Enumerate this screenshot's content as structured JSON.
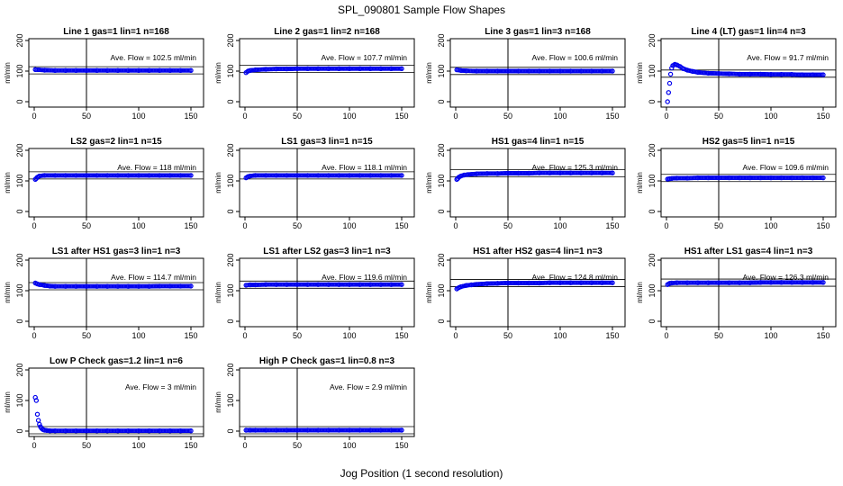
{
  "figure": {
    "title": "SPL_090801  Sample Flow Shapes",
    "xlabel": "Jog Position (1 second resolution)"
  },
  "colors": {
    "points": "#0000ee",
    "axes": "#000000"
  },
  "chart_data": [
    {
      "type": "scatter",
      "title": "Line 1 gas=1 lin=1 n=168",
      "ylabel": "ml/min",
      "annotation": "Ave. Flow =  102.5  ml/min",
      "mean": 102.5,
      "xlim": [
        0,
        150
      ],
      "ylim": [
        0,
        200
      ],
      "xticks": [
        0,
        50,
        100,
        150
      ],
      "yticks": [
        0,
        100,
        200
      ],
      "vline": 50,
      "x": [
        1,
        10,
        20,
        30,
        40,
        50,
        60,
        70,
        80,
        90,
        100,
        110,
        120,
        130,
        140,
        150
      ],
      "y": [
        105,
        103,
        102,
        102,
        102,
        102,
        102,
        102,
        102,
        102,
        102,
        102,
        102,
        102,
        102,
        102
      ]
    },
    {
      "type": "scatter",
      "title": "Line 2 gas=1 lin=2 n=168",
      "ylabel": "ml/min",
      "annotation": "Ave. Flow =  107.7  ml/min",
      "mean": 107.7,
      "xlim": [
        0,
        150
      ],
      "ylim": [
        0,
        200
      ],
      "xticks": [
        0,
        50,
        100,
        150
      ],
      "yticks": [
        0,
        100,
        200
      ],
      "vline": 50,
      "x": [
        1,
        3,
        5,
        10,
        20,
        30,
        40,
        50,
        60,
        70,
        80,
        90,
        100,
        110,
        120,
        130,
        140,
        150
      ],
      "y": [
        95,
        100,
        102,
        104,
        106,
        107,
        107,
        108,
        108,
        108,
        108,
        108,
        108,
        108,
        108,
        108,
        108,
        108
      ]
    },
    {
      "type": "scatter",
      "title": "Line 3 gas=1 lin=3 n=168",
      "ylabel": "ml/min",
      "annotation": "Ave. Flow =  100.6  ml/min",
      "mean": 100.6,
      "xlim": [
        0,
        150
      ],
      "ylim": [
        0,
        200
      ],
      "xticks": [
        0,
        50,
        100,
        150
      ],
      "yticks": [
        0,
        100,
        200
      ],
      "vline": 50,
      "x": [
        1,
        5,
        10,
        20,
        30,
        40,
        50,
        60,
        70,
        80,
        90,
        100,
        110,
        120,
        130,
        140,
        150
      ],
      "y": [
        104,
        102,
        101,
        100,
        100,
        100,
        100,
        100,
        100,
        100,
        100,
        100,
        100,
        100,
        100,
        100,
        100
      ]
    },
    {
      "type": "scatter",
      "title": "Line 4 (LT) gas=1 lin=4 n=3",
      "ylabel": "ml/min",
      "annotation": "Ave. Flow =  91.7  ml/min",
      "mean": 91.7,
      "xlim": [
        0,
        150
      ],
      "ylim": [
        0,
        200
      ],
      "xticks": [
        0,
        50,
        100,
        150
      ],
      "yticks": [
        0,
        100,
        200
      ],
      "vline": 50,
      "x": [
        1,
        2,
        3,
        4,
        5,
        6,
        8,
        10,
        13,
        16,
        20,
        25,
        30,
        40,
        50,
        60,
        70,
        80,
        90,
        100,
        110,
        120,
        130,
        140,
        150
      ],
      "y": [
        0,
        30,
        60,
        90,
        110,
        118,
        122,
        120,
        115,
        108,
        103,
        99,
        96,
        93,
        92,
        91,
        90,
        90,
        90,
        89,
        89,
        89,
        88,
        88,
        88
      ]
    },
    {
      "type": "scatter",
      "title": "LS2 gas=2 lin=1 n=15",
      "ylabel": "ml/min",
      "annotation": "Ave. Flow =  118  ml/min",
      "mean": 118,
      "xlim": [
        0,
        150
      ],
      "ylim": [
        0,
        200
      ],
      "xticks": [
        0,
        50,
        100,
        150
      ],
      "yticks": [
        0,
        100,
        200
      ],
      "vline": 50,
      "x": [
        1,
        2,
        3,
        5,
        10,
        20,
        30,
        40,
        50,
        60,
        70,
        80,
        90,
        100,
        110,
        120,
        130,
        140,
        150
      ],
      "y": [
        105,
        108,
        112,
        116,
        118,
        118,
        118,
        118,
        118,
        118,
        118,
        118,
        118,
        118,
        118,
        118,
        118,
        118,
        118
      ]
    },
    {
      "type": "scatter",
      "title": "LS1 gas=3 lin=1 n=15",
      "ylabel": "ml/min",
      "annotation": "Ave. Flow =  118.1  ml/min",
      "mean": 118.1,
      "xlim": [
        0,
        150
      ],
      "ylim": [
        0,
        200
      ],
      "xticks": [
        0,
        50,
        100,
        150
      ],
      "yticks": [
        0,
        100,
        200
      ],
      "vline": 50,
      "x": [
        1,
        3,
        5,
        10,
        20,
        30,
        40,
        50,
        60,
        70,
        80,
        90,
        100,
        110,
        120,
        130,
        140,
        150
      ],
      "y": [
        110,
        114,
        116,
        118,
        118,
        118,
        118,
        118,
        118,
        118,
        118,
        118,
        118,
        118,
        118,
        118,
        118,
        118
      ]
    },
    {
      "type": "scatter",
      "title": "HS1 gas=4 lin=1 n=15",
      "ylabel": "ml/min",
      "annotation": "Ave. Flow =  125.3  ml/min",
      "mean": 125.3,
      "xlim": [
        0,
        150
      ],
      "ylim": [
        0,
        200
      ],
      "xticks": [
        0,
        50,
        100,
        150
      ],
      "yticks": [
        0,
        100,
        200
      ],
      "vline": 50,
      "x": [
        1,
        2,
        3,
        5,
        8,
        12,
        20,
        30,
        40,
        50,
        60,
        70,
        80,
        90,
        100,
        110,
        120,
        130,
        140,
        150
      ],
      "y": [
        105,
        108,
        112,
        116,
        119,
        121,
        123,
        124,
        124,
        125,
        125,
        125,
        126,
        126,
        126,
        126,
        126,
        126,
        126,
        126
      ]
    },
    {
      "type": "scatter",
      "title": "HS2 gas=5 lin=1 n=15",
      "ylabel": "ml/min",
      "annotation": "Ave. Flow =  109.6  ml/min",
      "mean": 109.6,
      "xlim": [
        0,
        150
      ],
      "ylim": [
        0,
        200
      ],
      "xticks": [
        0,
        50,
        100,
        150
      ],
      "yticks": [
        0,
        100,
        200
      ],
      "vline": 50,
      "x": [
        1,
        3,
        5,
        10,
        20,
        30,
        40,
        50,
        60,
        70,
        80,
        90,
        100,
        110,
        120,
        130,
        140,
        150
      ],
      "y": [
        106,
        107,
        108,
        109,
        109,
        110,
        110,
        110,
        110,
        110,
        110,
        110,
        110,
        110,
        110,
        110,
        110,
        110
      ]
    },
    {
      "type": "scatter",
      "title": "LS1 after HS1 gas=3 lin=1 n=3",
      "ylabel": "ml/min",
      "annotation": "Ave. Flow =  114.7  ml/min",
      "mean": 114.7,
      "xlim": [
        0,
        150
      ],
      "ylim": [
        0,
        200
      ],
      "xticks": [
        0,
        50,
        100,
        150
      ],
      "yticks": [
        0,
        100,
        200
      ],
      "vline": 50,
      "x": [
        1,
        3,
        5,
        10,
        15,
        20,
        30,
        40,
        50,
        60,
        70,
        80,
        90,
        100,
        110,
        120,
        130,
        140,
        150
      ],
      "y": [
        125,
        122,
        120,
        117,
        115,
        114,
        114,
        114,
        114,
        114,
        114,
        114,
        114,
        114,
        114,
        115,
        115,
        115,
        115
      ]
    },
    {
      "type": "scatter",
      "title": "LS1 after LS2 gas=3 lin=1 n=3",
      "ylabel": "ml/min",
      "annotation": "Ave. Flow =  119.6  ml/min",
      "mean": 119.6,
      "xlim": [
        0,
        150
      ],
      "ylim": [
        0,
        200
      ],
      "xticks": [
        0,
        50,
        100,
        150
      ],
      "yticks": [
        0,
        100,
        200
      ],
      "vline": 50,
      "x": [
        1,
        5,
        10,
        20,
        30,
        40,
        50,
        60,
        70,
        80,
        90,
        100,
        110,
        120,
        130,
        140,
        150
      ],
      "y": [
        118,
        119,
        119,
        120,
        120,
        120,
        120,
        120,
        120,
        120,
        120,
        120,
        120,
        120,
        120,
        120,
        120
      ]
    },
    {
      "type": "scatter",
      "title": "HS1 after HS2 gas=4 lin=1 n=3",
      "ylabel": "ml/min",
      "annotation": "Ave. Flow =  124.8  ml/min",
      "mean": 124.8,
      "xlim": [
        0,
        150
      ],
      "ylim": [
        0,
        200
      ],
      "xticks": [
        0,
        50,
        100,
        150
      ],
      "yticks": [
        0,
        100,
        200
      ],
      "vline": 50,
      "x": [
        1,
        3,
        5,
        10,
        15,
        20,
        30,
        40,
        50,
        60,
        70,
        80,
        90,
        100,
        110,
        120,
        130,
        140,
        150
      ],
      "y": [
        106,
        110,
        113,
        117,
        119,
        121,
        123,
        124,
        125,
        125,
        125,
        125,
        126,
        126,
        126,
        126,
        126,
        126,
        126
      ]
    },
    {
      "type": "scatter",
      "title": "HS1 after LS1 gas=4 lin=1 n=3",
      "ylabel": "ml/min",
      "annotation": "Ave. Flow =  126.3  ml/min",
      "mean": 126.3,
      "xlim": [
        0,
        150
      ],
      "ylim": [
        0,
        200
      ],
      "xticks": [
        0,
        50,
        100,
        150
      ],
      "yticks": [
        0,
        100,
        200
      ],
      "vline": 50,
      "x": [
        1,
        3,
        5,
        10,
        20,
        30,
        40,
        50,
        60,
        70,
        80,
        90,
        100,
        110,
        120,
        130,
        140,
        150
      ],
      "y": [
        120,
        124,
        125,
        126,
        126,
        126,
        126,
        126,
        126,
        126,
        126,
        127,
        127,
        127,
        127,
        127,
        127,
        127
      ]
    },
    {
      "type": "scatter",
      "title": "Low P Check gas=1.2 lin=1 n=6",
      "ylabel": "ml/min",
      "annotation": "Ave. Flow =  3  ml/min",
      "mean": 3,
      "xlim": [
        0,
        150
      ],
      "ylim": [
        0,
        200
      ],
      "xticks": [
        0,
        50,
        100,
        150
      ],
      "yticks": [
        0,
        100,
        200
      ],
      "vline": 50,
      "x": [
        1,
        2,
        3,
        4,
        5,
        6,
        7,
        8,
        9,
        10,
        12,
        15,
        20,
        30,
        40,
        50,
        60,
        70,
        80,
        90,
        100,
        110,
        120,
        130,
        140,
        150
      ],
      "y": [
        110,
        100,
        55,
        35,
        22,
        14,
        9,
        6,
        4,
        3,
        2,
        1,
        1,
        1,
        1,
        1,
        1,
        1,
        1,
        1,
        1,
        1,
        1,
        1,
        1,
        1
      ]
    },
    {
      "type": "scatter",
      "title": "High P Check gas=1 lin=0.8 n=3",
      "ylabel": "ml/min",
      "annotation": "Ave. Flow =  2.9  ml/min",
      "mean": 2.9,
      "xlim": [
        0,
        150
      ],
      "ylim": [
        0,
        200
      ],
      "xticks": [
        0,
        50,
        100,
        150
      ],
      "yticks": [
        0,
        100,
        200
      ],
      "vline": 50,
      "x": [
        1,
        5,
        10,
        20,
        30,
        40,
        50,
        60,
        70,
        80,
        90,
        100,
        110,
        120,
        130,
        140,
        150
      ],
      "y": [
        3,
        3,
        3,
        3,
        3,
        3,
        3,
        3,
        3,
        3,
        3,
        3,
        3,
        3,
        3,
        3,
        3
      ]
    }
  ]
}
